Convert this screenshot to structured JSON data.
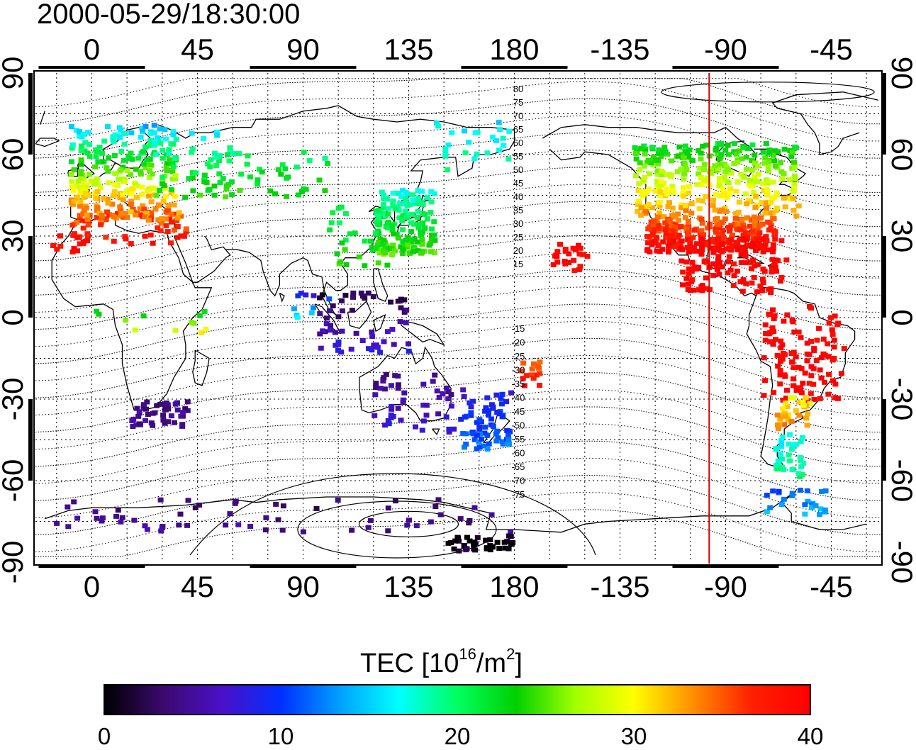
{
  "timestamp": "2000-05-29/18:30:00",
  "map": {
    "top_axis_labels": [
      "0",
      "45",
      "90",
      "135",
      "180",
      "-135",
      "-90",
      "-45"
    ],
    "bottom_axis_labels": [
      "0",
      "45",
      "90",
      "135",
      "180",
      "-135",
      "-90",
      "-45"
    ],
    "left_axis_labels": [
      "90",
      "60",
      "30",
      "0",
      "-30",
      "-60",
      "-90"
    ],
    "right_axis_labels": [
      "90",
      "60",
      "30",
      "0",
      "-30",
      "-60",
      "-90"
    ],
    "contour_labels_north": [
      "80",
      "75",
      "70",
      "65",
      "60",
      "55",
      "50",
      "45",
      "40",
      "35",
      "30",
      "25",
      "20",
      "15"
    ],
    "contour_labels_south": [
      "-15",
      "-20",
      "-25",
      "-30",
      "-35",
      "-40",
      "-45",
      "-50",
      "-55",
      "-60",
      "-65",
      "-70",
      "-75"
    ],
    "meridian_line_color": "#d40000",
    "meridian_longitude": -97
  },
  "colorbar": {
    "title": "TEC  [10",
    "title_exp": "16",
    "title_unit": "/m",
    "title_unit_exp": "2",
    "title_close": "]",
    "tick_labels": [
      "0",
      "10",
      "20",
      "30",
      "40"
    ],
    "colors": [
      "#000000",
      "#3c0a6e",
      "#4a10c8",
      "#0030ff",
      "#00a0ff",
      "#00ffff",
      "#00ff60",
      "#00d000",
      "#a0ff00",
      "#ffff00",
      "#ff9000",
      "#ff2000",
      "#ff0000"
    ]
  }
}
